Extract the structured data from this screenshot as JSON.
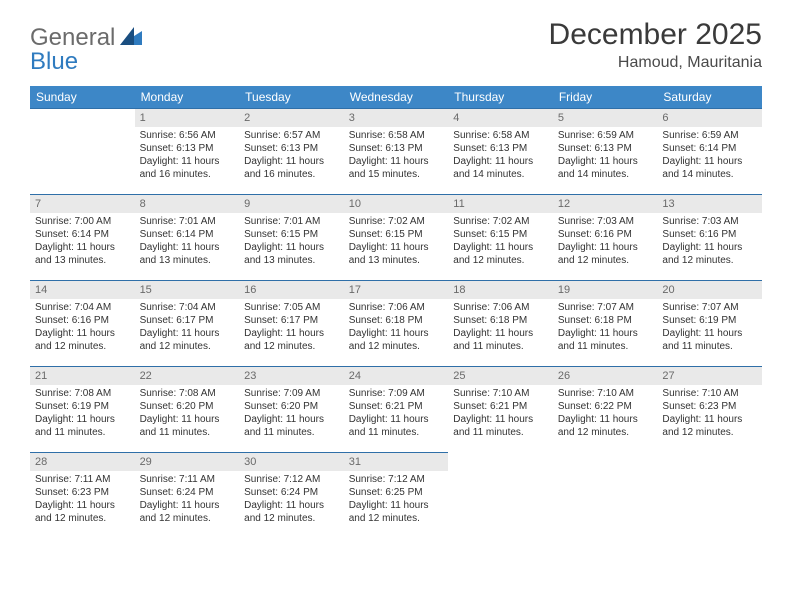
{
  "logo": {
    "general": "General",
    "blue": "Blue"
  },
  "title": "December 2025",
  "location": "Hamoud, Mauritania",
  "colors": {
    "header_bg": "#3d87c7",
    "header_fg": "#ffffff",
    "daynum_bg": "#e9e9e9",
    "daynum_fg": "#6a6a6a",
    "rule": "#2f6fa8",
    "text": "#333333"
  },
  "weekdays": [
    "Sunday",
    "Monday",
    "Tuesday",
    "Wednesday",
    "Thursday",
    "Friday",
    "Saturday"
  ],
  "leading_blanks": 1,
  "days": [
    {
      "n": 1,
      "sunrise": "6:56 AM",
      "sunset": "6:13 PM",
      "daylight": "11 hours and 16 minutes."
    },
    {
      "n": 2,
      "sunrise": "6:57 AM",
      "sunset": "6:13 PM",
      "daylight": "11 hours and 16 minutes."
    },
    {
      "n": 3,
      "sunrise": "6:58 AM",
      "sunset": "6:13 PM",
      "daylight": "11 hours and 15 minutes."
    },
    {
      "n": 4,
      "sunrise": "6:58 AM",
      "sunset": "6:13 PM",
      "daylight": "11 hours and 14 minutes."
    },
    {
      "n": 5,
      "sunrise": "6:59 AM",
      "sunset": "6:13 PM",
      "daylight": "11 hours and 14 minutes."
    },
    {
      "n": 6,
      "sunrise": "6:59 AM",
      "sunset": "6:14 PM",
      "daylight": "11 hours and 14 minutes."
    },
    {
      "n": 7,
      "sunrise": "7:00 AM",
      "sunset": "6:14 PM",
      "daylight": "11 hours and 13 minutes."
    },
    {
      "n": 8,
      "sunrise": "7:01 AM",
      "sunset": "6:14 PM",
      "daylight": "11 hours and 13 minutes."
    },
    {
      "n": 9,
      "sunrise": "7:01 AM",
      "sunset": "6:15 PM",
      "daylight": "11 hours and 13 minutes."
    },
    {
      "n": 10,
      "sunrise": "7:02 AM",
      "sunset": "6:15 PM",
      "daylight": "11 hours and 13 minutes."
    },
    {
      "n": 11,
      "sunrise": "7:02 AM",
      "sunset": "6:15 PM",
      "daylight": "11 hours and 12 minutes."
    },
    {
      "n": 12,
      "sunrise": "7:03 AM",
      "sunset": "6:16 PM",
      "daylight": "11 hours and 12 minutes."
    },
    {
      "n": 13,
      "sunrise": "7:03 AM",
      "sunset": "6:16 PM",
      "daylight": "11 hours and 12 minutes."
    },
    {
      "n": 14,
      "sunrise": "7:04 AM",
      "sunset": "6:16 PM",
      "daylight": "11 hours and 12 minutes."
    },
    {
      "n": 15,
      "sunrise": "7:04 AM",
      "sunset": "6:17 PM",
      "daylight": "11 hours and 12 minutes."
    },
    {
      "n": 16,
      "sunrise": "7:05 AM",
      "sunset": "6:17 PM",
      "daylight": "11 hours and 12 minutes."
    },
    {
      "n": 17,
      "sunrise": "7:06 AM",
      "sunset": "6:18 PM",
      "daylight": "11 hours and 12 minutes."
    },
    {
      "n": 18,
      "sunrise": "7:06 AM",
      "sunset": "6:18 PM",
      "daylight": "11 hours and 11 minutes."
    },
    {
      "n": 19,
      "sunrise": "7:07 AM",
      "sunset": "6:18 PM",
      "daylight": "11 hours and 11 minutes."
    },
    {
      "n": 20,
      "sunrise": "7:07 AM",
      "sunset": "6:19 PM",
      "daylight": "11 hours and 11 minutes."
    },
    {
      "n": 21,
      "sunrise": "7:08 AM",
      "sunset": "6:19 PM",
      "daylight": "11 hours and 11 minutes."
    },
    {
      "n": 22,
      "sunrise": "7:08 AM",
      "sunset": "6:20 PM",
      "daylight": "11 hours and 11 minutes."
    },
    {
      "n": 23,
      "sunrise": "7:09 AM",
      "sunset": "6:20 PM",
      "daylight": "11 hours and 11 minutes."
    },
    {
      "n": 24,
      "sunrise": "7:09 AM",
      "sunset": "6:21 PM",
      "daylight": "11 hours and 11 minutes."
    },
    {
      "n": 25,
      "sunrise": "7:10 AM",
      "sunset": "6:21 PM",
      "daylight": "11 hours and 11 minutes."
    },
    {
      "n": 26,
      "sunrise": "7:10 AM",
      "sunset": "6:22 PM",
      "daylight": "11 hours and 12 minutes."
    },
    {
      "n": 27,
      "sunrise": "7:10 AM",
      "sunset": "6:23 PM",
      "daylight": "11 hours and 12 minutes."
    },
    {
      "n": 28,
      "sunrise": "7:11 AM",
      "sunset": "6:23 PM",
      "daylight": "11 hours and 12 minutes."
    },
    {
      "n": 29,
      "sunrise": "7:11 AM",
      "sunset": "6:24 PM",
      "daylight": "11 hours and 12 minutes."
    },
    {
      "n": 30,
      "sunrise": "7:12 AM",
      "sunset": "6:24 PM",
      "daylight": "11 hours and 12 minutes."
    },
    {
      "n": 31,
      "sunrise": "7:12 AM",
      "sunset": "6:25 PM",
      "daylight": "11 hours and 12 minutes."
    }
  ],
  "labels": {
    "sunrise": "Sunrise:",
    "sunset": "Sunset:",
    "daylight": "Daylight:"
  }
}
